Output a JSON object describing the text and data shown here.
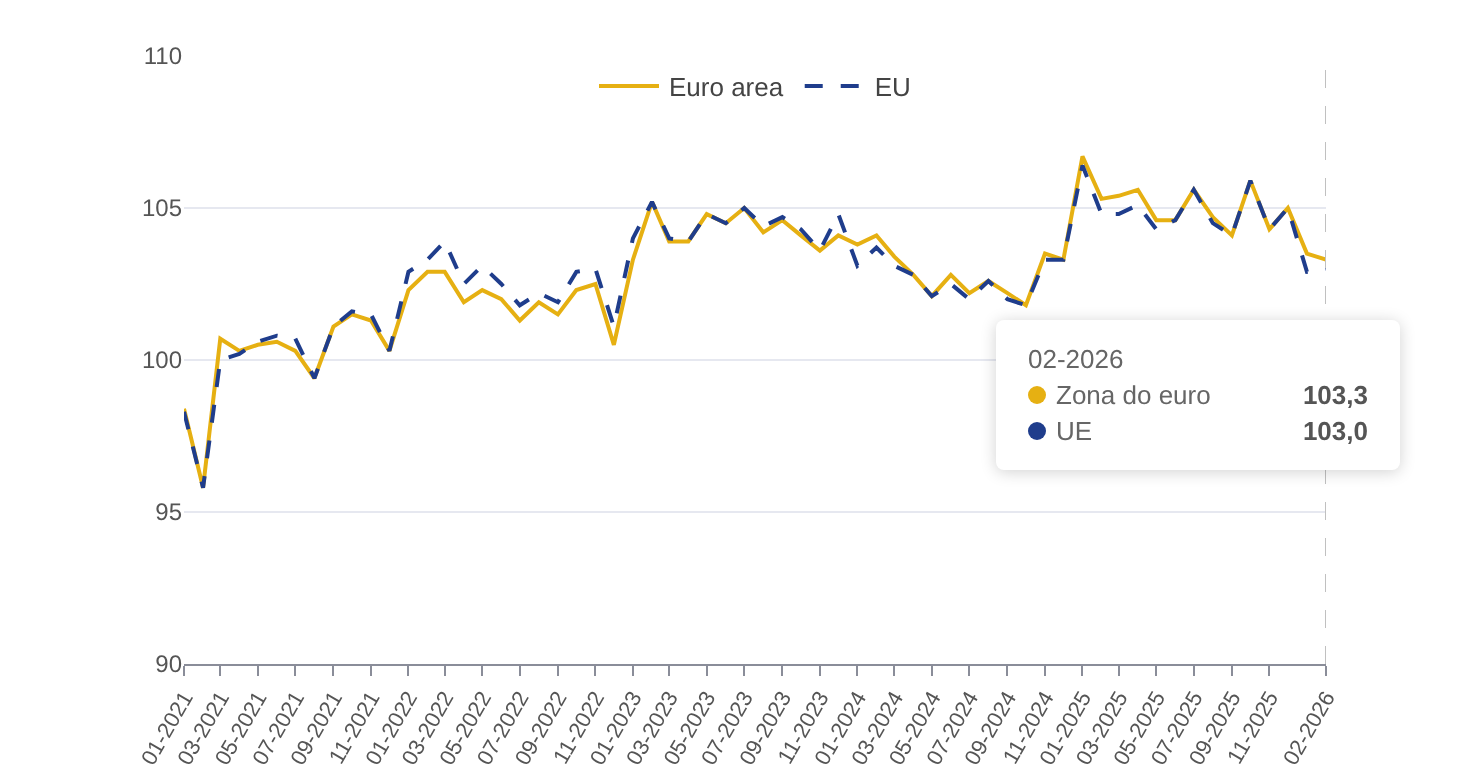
{
  "chart_data": {
    "type": "line",
    "x": [
      "2021-01",
      "2021-02",
      "2021-03",
      "2021-04",
      "2021-05",
      "2021-06",
      "2021-07",
      "2021-08",
      "2021-09",
      "2021-10",
      "2021-11",
      "2021-12",
      "2022-01",
      "2022-02",
      "2022-03",
      "2022-04",
      "2022-05",
      "2022-06",
      "2022-07",
      "2022-08",
      "2022-09",
      "2022-10",
      "2022-11",
      "2022-12",
      "2023-01",
      "2023-02",
      "2023-03",
      "2023-04",
      "2023-05",
      "2023-06",
      "2023-07",
      "2023-08",
      "2023-09",
      "2023-10",
      "2023-11",
      "2023-12",
      "2024-01",
      "2024-02",
      "2024-03",
      "2024-04",
      "2024-05",
      "2024-06",
      "2024-07",
      "2024-08",
      "2024-09",
      "2024-10",
      "2024-11",
      "2024-12",
      "2025-01",
      "2025-02",
      "2025-03",
      "2025-04",
      "2025-05",
      "2025-06",
      "2025-07",
      "2025-08",
      "2025-09",
      "2025-10",
      "2025-11",
      "2025-12",
      "2026-01",
      "2026-02"
    ],
    "series": [
      {
        "name": "Euro area",
        "color": "#e6b012",
        "line_style": "solid",
        "values": [
          98.4,
          95.8,
          100.7,
          100.3,
          100.5,
          100.6,
          100.3,
          99.4,
          101.1,
          101.5,
          101.3,
          100.3,
          102.3,
          102.9,
          102.9,
          101.9,
          102.3,
          102.0,
          101.3,
          101.9,
          101.5,
          102.3,
          102.5,
          100.5,
          103.3,
          105.2,
          103.9,
          103.9,
          104.8,
          104.5,
          105.0,
          104.2,
          104.6,
          104.1,
          103.6,
          104.1,
          103.8,
          104.1,
          103.4,
          102.8,
          102.1,
          102.8,
          102.2,
          102.6,
          102.2,
          101.8,
          103.5,
          103.3,
          106.7,
          105.3,
          105.4,
          105.6,
          104.6,
          104.6,
          105.6,
          104.7,
          104.1,
          105.9,
          104.3,
          105.0,
          103.5,
          103.3
        ]
      },
      {
        "name": "EU",
        "color": "#1f3d8c",
        "line_style": "dashed",
        "values": [
          98.3,
          95.8,
          100.0,
          100.2,
          100.6,
          100.8,
          100.7,
          99.4,
          101.1,
          101.6,
          101.5,
          100.3,
          102.9,
          103.3,
          103.9,
          102.5,
          103.1,
          102.5,
          101.8,
          102.2,
          101.9,
          102.9,
          103.0,
          101.1,
          104.0,
          105.2,
          104.0,
          103.9,
          104.8,
          104.5,
          105.0,
          104.4,
          104.7,
          104.3,
          103.6,
          104.8,
          103.1,
          103.7,
          103.1,
          102.8,
          102.1,
          102.5,
          102.0,
          102.6,
          102.0,
          101.8,
          103.3,
          103.3,
          106.4,
          104.8,
          104.8,
          105.1,
          104.3,
          104.6,
          105.6,
          104.5,
          104.1,
          105.9,
          104.3,
          105.0,
          102.9,
          103.0
        ]
      }
    ],
    "xlim": [
      "2021-01",
      "2026-02"
    ],
    "xticks": [
      {
        "value": "2021-01",
        "label": "01-2021"
      },
      {
        "value": "2021-03",
        "label": "03-2021"
      },
      {
        "value": "2021-05",
        "label": "05-2021"
      },
      {
        "value": "2021-07",
        "label": "07-2021"
      },
      {
        "value": "2021-09",
        "label": "09-2021"
      },
      {
        "value": "2021-11",
        "label": "11-2021"
      },
      {
        "value": "2022-01",
        "label": "01-2022"
      },
      {
        "value": "2022-03",
        "label": "03-2022"
      },
      {
        "value": "2022-05",
        "label": "05-2022"
      },
      {
        "value": "2022-07",
        "label": "07-2022"
      },
      {
        "value": "2022-09",
        "label": "09-2022"
      },
      {
        "value": "2022-11",
        "label": "11-2022"
      },
      {
        "value": "2023-01",
        "label": "01-2023"
      },
      {
        "value": "2023-03",
        "label": "03-2023"
      },
      {
        "value": "2023-05",
        "label": "05-2023"
      },
      {
        "value": "2023-07",
        "label": "07-2023"
      },
      {
        "value": "2023-09",
        "label": "09-2023"
      },
      {
        "value": "2023-11",
        "label": "11-2023"
      },
      {
        "value": "2024-01",
        "label": "01-2024"
      },
      {
        "value": "2024-03",
        "label": "03-2024"
      },
      {
        "value": "2024-05",
        "label": "05-2024"
      },
      {
        "value": "2024-07",
        "label": "07-2024"
      },
      {
        "value": "2024-09",
        "label": "09-2024"
      },
      {
        "value": "2024-11",
        "label": "11-2024"
      },
      {
        "value": "2025-01",
        "label": "01-2025"
      },
      {
        "value": "2025-03",
        "label": "03-2025"
      },
      {
        "value": "2025-05",
        "label": "05-2025"
      },
      {
        "value": "2025-07",
        "label": "07-2025"
      },
      {
        "value": "2025-09",
        "label": "09-2025"
      },
      {
        "value": "2025-11",
        "label": "11-2025"
      },
      {
        "value": "2026-02",
        "label": "02-2026"
      }
    ],
    "ylim": [
      90,
      110
    ],
    "yticks": [
      90,
      95,
      100,
      105,
      110
    ],
    "grid": "y",
    "legend": "top",
    "ref_lines": [
      {
        "axis": "x",
        "value": "2026-02",
        "color": "#c0c0c0",
        "line_style": "dashed"
      }
    ],
    "annotations": [
      "02-2026",
      "Zona do euro",
      "103,3",
      "UE",
      "103,0"
    ]
  }
}
